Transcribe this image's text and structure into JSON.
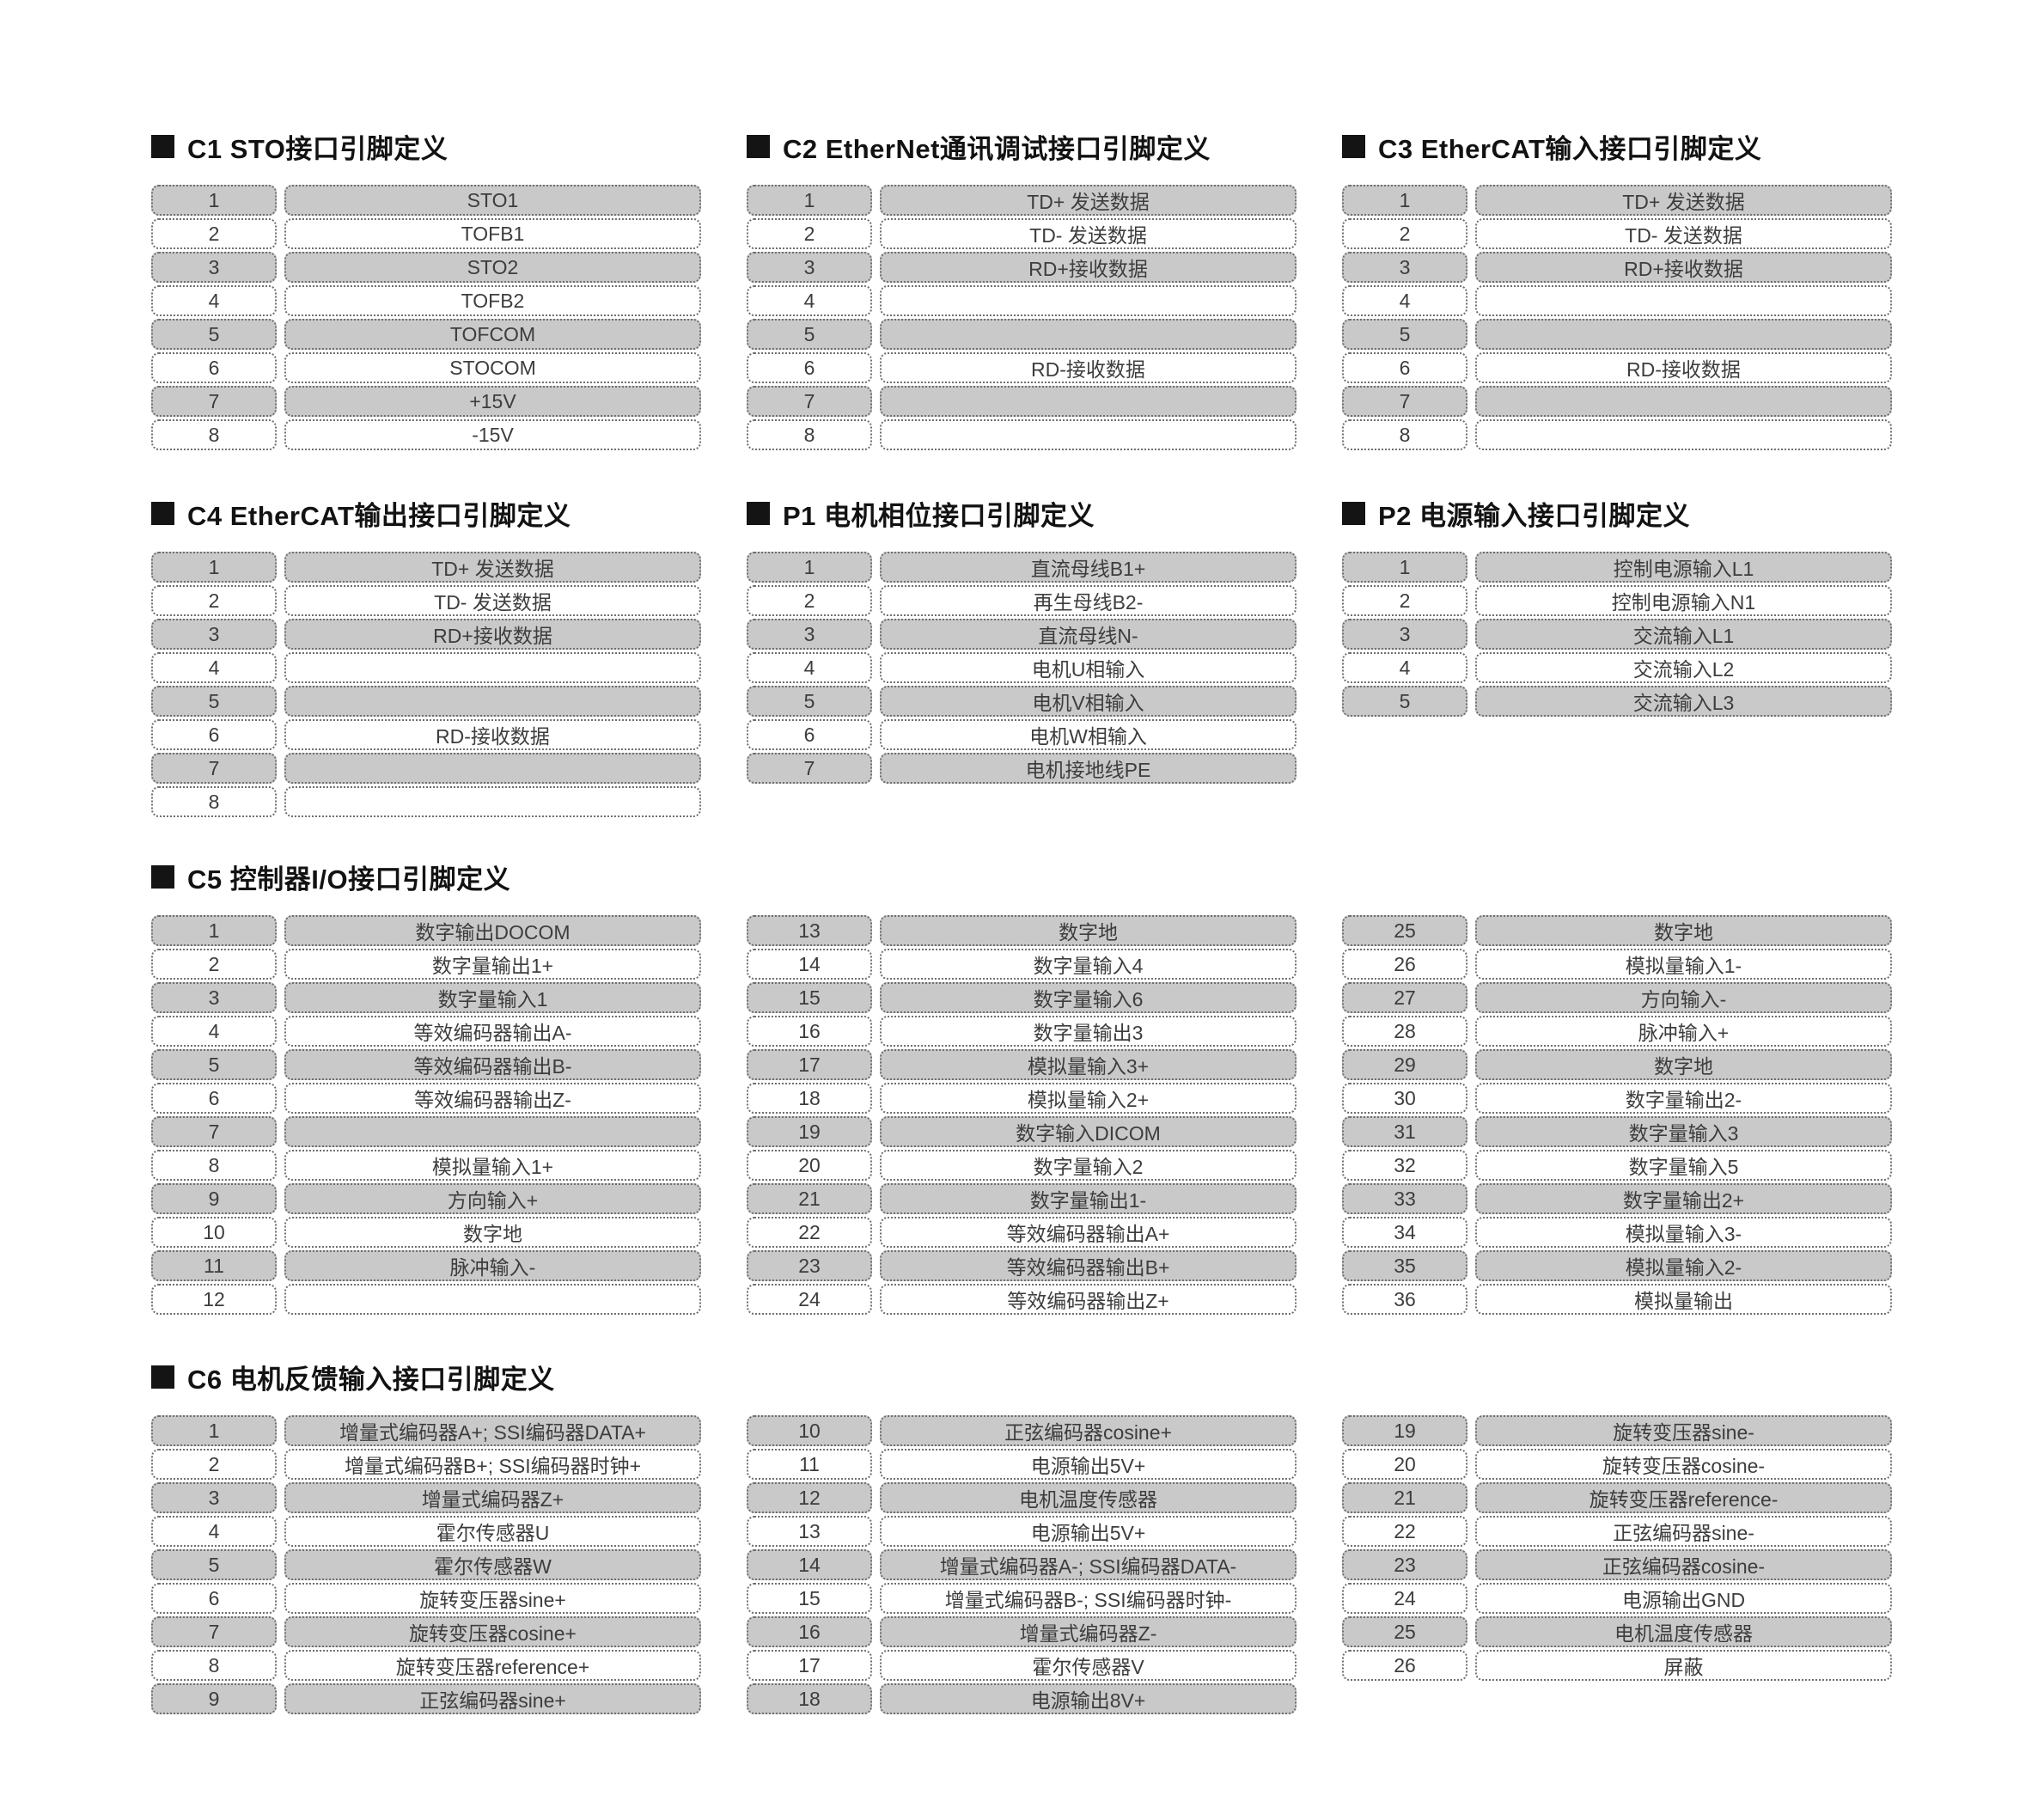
{
  "document": {
    "type": "connector-pin-definition-sheet",
    "language": "zh-CN"
  },
  "colors": {
    "background": "#ffffff",
    "row_gray": "#c9c9c9",
    "row_white": "#ffffff",
    "cell_border": "#6e6e6e",
    "cell_text": "#3d3d3d",
    "title_text": "#121212",
    "bullet": "#141414"
  },
  "icons": {
    "section_bullet": "black-square"
  },
  "bands": [
    {
      "name": "connector-row-1",
      "blocks": [
        {
          "title": "C1  STO接口引脚定义",
          "rows": [
            [
              "1",
              "STO1"
            ],
            [
              "2",
              "TOFB1"
            ],
            [
              "3",
              "STO2"
            ],
            [
              "4",
              "TOFB2"
            ],
            [
              "5",
              "TOFCOM"
            ],
            [
              "6",
              "STOCOM"
            ],
            [
              "7",
              "+15V"
            ],
            [
              "8",
              "-15V"
            ]
          ]
        },
        {
          "title": "C2 EtherNet通讯调试接口引脚定义",
          "rows": [
            [
              "1",
              "TD+ 发送数据"
            ],
            [
              "2",
              "TD- 发送数据"
            ],
            [
              "3",
              "RD+接收数据"
            ],
            [
              "4",
              ""
            ],
            [
              "5",
              ""
            ],
            [
              "6",
              "RD-接收数据"
            ],
            [
              "7",
              ""
            ],
            [
              "8",
              ""
            ]
          ]
        },
        {
          "title": "C3 EtherCAT输入接口引脚定义",
          "rows": [
            [
              "1",
              "TD+ 发送数据"
            ],
            [
              "2",
              "TD- 发送数据"
            ],
            [
              "3",
              "RD+接收数据"
            ],
            [
              "4",
              ""
            ],
            [
              "5",
              ""
            ],
            [
              "6",
              "RD-接收数据"
            ],
            [
              "7",
              ""
            ],
            [
              "8",
              ""
            ]
          ]
        }
      ]
    },
    {
      "name": "connector-row-2",
      "blocks": [
        {
          "title": "C4 EtherCAT输出接口引脚定义",
          "rows": [
            [
              "1",
              "TD+ 发送数据"
            ],
            [
              "2",
              "TD- 发送数据"
            ],
            [
              "3",
              "RD+接收数据"
            ],
            [
              "4",
              ""
            ],
            [
              "5",
              ""
            ],
            [
              "6",
              "RD-接收数据"
            ],
            [
              "7",
              ""
            ],
            [
              "8",
              ""
            ]
          ]
        },
        {
          "title": "P1  电机相位接口引脚定义",
          "rows": [
            [
              "1",
              "直流母线B1+"
            ],
            [
              "2",
              "再生母线B2-"
            ],
            [
              "3",
              "直流母线N-"
            ],
            [
              "4",
              "电机U相输入"
            ],
            [
              "5",
              "电机V相输入"
            ],
            [
              "6",
              "电机W相输入"
            ],
            [
              "7",
              "电机接地线PE"
            ]
          ]
        },
        {
          "title": "P2  电源输入接口引脚定义",
          "rows": [
            [
              "1",
              "控制电源输入L1"
            ],
            [
              "2",
              "控制电源输入N1"
            ],
            [
              "3",
              "交流输入L1"
            ],
            [
              "4",
              "交流输入L2"
            ],
            [
              "5",
              "交流输入L3"
            ]
          ]
        }
      ]
    },
    {
      "name": "connector-c5",
      "title": "C5 控制器I/O接口引脚定义",
      "blocks": [
        {
          "rows": [
            [
              "1",
              "数字输出DOCOM"
            ],
            [
              "2",
              "数字量输出1+"
            ],
            [
              "3",
              "数字量输入1"
            ],
            [
              "4",
              "等效编码器输出A-"
            ],
            [
              "5",
              "等效编码器输出B-"
            ],
            [
              "6",
              "等效编码器输出Z-"
            ],
            [
              "7",
              ""
            ],
            [
              "8",
              "模拟量输入1+"
            ],
            [
              "9",
              "方向输入+"
            ],
            [
              "10",
              "数字地"
            ],
            [
              "11",
              "脉冲输入-"
            ],
            [
              "12",
              ""
            ]
          ]
        },
        {
          "rows": [
            [
              "13",
              "数字地"
            ],
            [
              "14",
              "数字量输入4"
            ],
            [
              "15",
              "数字量输入6"
            ],
            [
              "16",
              "数字量输出3"
            ],
            [
              "17",
              "模拟量输入3+"
            ],
            [
              "18",
              "模拟量输入2+"
            ],
            [
              "19",
              "数字输入DICOM"
            ],
            [
              "20",
              "数字量输入2"
            ],
            [
              "21",
              "数字量输出1-"
            ],
            [
              "22",
              "等效编码器输出A+"
            ],
            [
              "23",
              "等效编码器输出B+"
            ],
            [
              "24",
              "等效编码器输出Z+"
            ]
          ]
        },
        {
          "rows": [
            [
              "25",
              "数字地"
            ],
            [
              "26",
              "模拟量输入1-"
            ],
            [
              "27",
              "方向输入-"
            ],
            [
              "28",
              "脉冲输入+"
            ],
            [
              "29",
              "数字地"
            ],
            [
              "30",
              "数字量输出2-"
            ],
            [
              "31",
              "数字量输入3"
            ],
            [
              "32",
              "数字量输入5"
            ],
            [
              "33",
              "数字量输出2+"
            ],
            [
              "34",
              "模拟量输入3-"
            ],
            [
              "35",
              "模拟量输入2-"
            ],
            [
              "36",
              "模拟量输出"
            ]
          ]
        }
      ]
    },
    {
      "name": "connector-c6",
      "title": "C6 电机反馈输入接口引脚定义",
      "blocks": [
        {
          "rows": [
            [
              "1",
              "增量式编码器A+; SSI编码器DATA+"
            ],
            [
              "2",
              "增量式编码器B+; SSI编码器时钟+"
            ],
            [
              "3",
              "增量式编码器Z+"
            ],
            [
              "4",
              "霍尔传感器U"
            ],
            [
              "5",
              "霍尔传感器W"
            ],
            [
              "6",
              "旋转变压器sine+"
            ],
            [
              "7",
              "旋转变压器cosine+"
            ],
            [
              "8",
              "旋转变压器reference+"
            ],
            [
              "9",
              "正弦编码器sine+"
            ]
          ]
        },
        {
          "rows": [
            [
              "10",
              "正弦编码器cosine+"
            ],
            [
              "11",
              "电源输出5V+"
            ],
            [
              "12",
              "电机温度传感器"
            ],
            [
              "13",
              "电源输出5V+"
            ],
            [
              "14",
              "增量式编码器A-; SSI编码器DATA-"
            ],
            [
              "15",
              "增量式编码器B-; SSI编码器时钟-"
            ],
            [
              "16",
              "增量式编码器Z-"
            ],
            [
              "17",
              "霍尔传感器V"
            ],
            [
              "18",
              "电源输出8V+"
            ]
          ]
        },
        {
          "rows": [
            [
              "19",
              "旋转变压器sine-"
            ],
            [
              "20",
              "旋转变压器cosine-"
            ],
            [
              "21",
              "旋转变压器reference-"
            ],
            [
              "22",
              "正弦编码器sine-"
            ],
            [
              "23",
              "正弦编码器cosine-"
            ],
            [
              "24",
              "电源输出GND"
            ],
            [
              "25",
              "电机温度传感器"
            ],
            [
              "26",
              "屏蔽"
            ]
          ]
        }
      ]
    }
  ]
}
